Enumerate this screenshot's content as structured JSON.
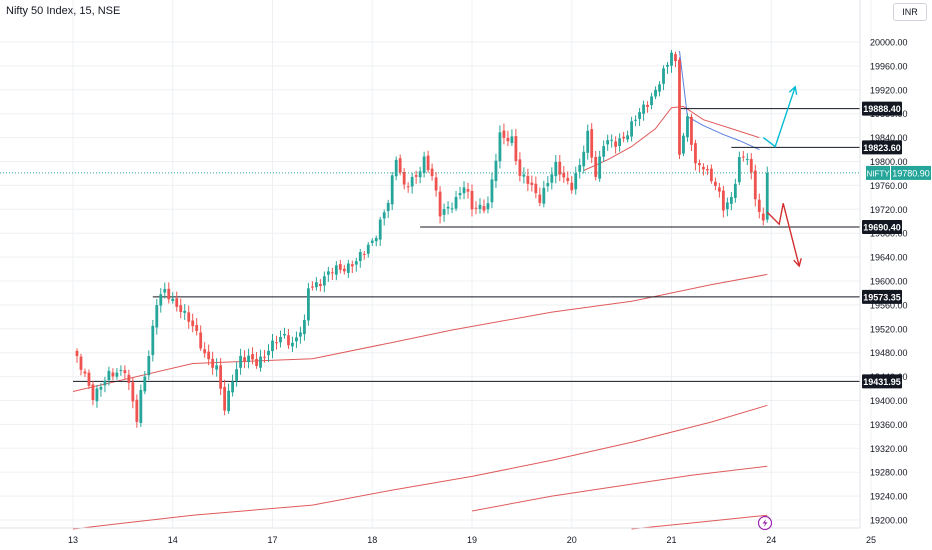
{
  "header": {
    "title": "Nifty 50 Index, 15, NSE",
    "currency": "INR"
  },
  "colors": {
    "up": "#26a69a",
    "down": "#ef5350",
    "ma": "#e05a5a",
    "ma_fast": "#5b7fe0",
    "projection_up": "#00bcd4",
    "projection_down": "#d32f2f",
    "level": "#131722",
    "grid": "#eef0f3",
    "last_price": "#26a69a"
  },
  "chart_data": {
    "type": "candlestick",
    "title": "Nifty 50 Index, 15, NSE",
    "ylim": [
      19185,
      20040
    ],
    "y_ticks": [
      19200,
      19240,
      19280,
      19320,
      19360,
      19400,
      19440,
      19480,
      19520,
      19560,
      19600,
      19640,
      19680,
      19720,
      19760,
      19800,
      19840,
      19880,
      19920,
      19960,
      20000
    ],
    "y_tick_labels": [
      "19200.00",
      "19240.00",
      "19280.00",
      "19320.00",
      "19360.00",
      "19400.00",
      "19440.00",
      "19480.00",
      "19520.00",
      "19560.00",
      "19600.00",
      "19640.00",
      "19680.00",
      "19720.00",
      "19760.00",
      "19800.00",
      "19840.00",
      "19880.00",
      "19920.00",
      "19960.00",
      "20000.00"
    ],
    "x_ticks": [
      {
        "label": "13",
        "bar": 0
      },
      {
        "label": "14",
        "bar": 25
      },
      {
        "label": "17",
        "bar": 50
      },
      {
        "label": "18",
        "bar": 75
      },
      {
        "label": "19",
        "bar": 100
      },
      {
        "label": "20",
        "bar": 125
      },
      {
        "label": "21",
        "bar": 150
      },
      {
        "label": "24",
        "bar": 175
      },
      {
        "label": "25",
        "bar": 200
      }
    ],
    "bar0_x_offset": -16,
    "last_bar": 174,
    "close_path": [
      [
        0,
        19480
      ],
      [
        3,
        19440
      ],
      [
        5,
        19410
      ],
      [
        9,
        19440
      ],
      [
        13,
        19455
      ],
      [
        16,
        19365
      ],
      [
        17,
        19410
      ],
      [
        19,
        19480
      ],
      [
        21,
        19565
      ],
      [
        23,
        19580
      ],
      [
        27,
        19555
      ],
      [
        31,
        19510
      ],
      [
        33,
        19480
      ],
      [
        36,
        19450
      ],
      [
        38,
        19385
      ],
      [
        40,
        19440
      ],
      [
        42,
        19470
      ],
      [
        46,
        19465
      ],
      [
        49,
        19485
      ],
      [
        53,
        19510
      ],
      [
        55,
        19495
      ],
      [
        58,
        19525
      ],
      [
        59,
        19590
      ],
      [
        62,
        19600
      ],
      [
        66,
        19620
      ],
      [
        71,
        19630
      ],
      [
        74,
        19660
      ],
      [
        76,
        19680
      ],
      [
        79,
        19730
      ],
      [
        81,
        19810
      ],
      [
        83,
        19760
      ],
      [
        86,
        19770
      ],
      [
        88,
        19805
      ],
      [
        90,
        19780
      ],
      [
        92,
        19710
      ],
      [
        94,
        19720
      ],
      [
        98,
        19760
      ],
      [
        100,
        19720
      ],
      [
        104,
        19730
      ],
      [
        107,
        19840
      ],
      [
        110,
        19840
      ],
      [
        112,
        19775
      ],
      [
        114,
        19765
      ],
      [
        117,
        19740
      ],
      [
        121,
        19790
      ],
      [
        125,
        19760
      ],
      [
        127,
        19790
      ],
      [
        129,
        19845
      ],
      [
        131,
        19780
      ],
      [
        133,
        19830
      ],
      [
        136,
        19830
      ],
      [
        139,
        19850
      ],
      [
        142,
        19880
      ],
      [
        146,
        19920
      ],
      [
        149,
        19960
      ],
      [
        150,
        19985
      ],
      [
        151,
        19965
      ],
      [
        152,
        19820
      ],
      [
        154,
        19870
      ],
      [
        156,
        19790
      ],
      [
        158,
        19795
      ],
      [
        161,
        19760
      ],
      [
        163,
        19720
      ],
      [
        165,
        19740
      ],
      [
        167,
        19805
      ],
      [
        169,
        19805
      ],
      [
        171,
        19740
      ],
      [
        173,
        19700
      ],
      [
        174,
        19780
      ]
    ],
    "overlays": [
      {
        "kind": "ma",
        "color": "ma",
        "points": [
          [
            0,
            19415
          ],
          [
            30,
            19462
          ],
          [
            60,
            19470
          ],
          [
            80,
            19497
          ],
          [
            95,
            19518
          ],
          [
            120,
            19548
          ],
          [
            140,
            19566
          ],
          [
            160,
            19594
          ],
          [
            174,
            19611
          ]
        ]
      },
      {
        "kind": "ma",
        "color": "ma",
        "points": [
          [
            100,
            19215
          ],
          [
            120,
            19240
          ],
          [
            140,
            19260
          ],
          [
            155,
            19275
          ],
          [
            174,
            19290
          ]
        ]
      },
      {
        "kind": "ma",
        "color": "ma",
        "points": [
          [
            0,
            19185
          ],
          [
            30,
            19208
          ],
          [
            60,
            19225
          ],
          [
            80,
            19250
          ],
          [
            100,
            19273
          ],
          [
            120,
            19300
          ],
          [
            140,
            19330
          ],
          [
            160,
            19364
          ],
          [
            174,
            19392
          ]
        ]
      },
      {
        "kind": "ma",
        "color": "ma",
        "points": [
          [
            140,
            19185
          ],
          [
            155,
            19195
          ],
          [
            174,
            19208
          ]
        ]
      },
      {
        "kind": "ma",
        "color": "ma",
        "points": [
          [
            128,
            19785
          ],
          [
            134,
            19803
          ],
          [
            140,
            19825
          ],
          [
            146,
            19855
          ],
          [
            150,
            19890
          ],
          [
            153,
            19892
          ],
          [
            158,
            19870
          ],
          [
            165,
            19855
          ],
          [
            172,
            19840
          ]
        ]
      },
      {
        "kind": "ma",
        "color": "ma_fast",
        "points": [
          [
            152,
            19985
          ],
          [
            154,
            19875
          ],
          [
            158,
            19860
          ],
          [
            163,
            19845
          ],
          [
            167,
            19835
          ],
          [
            172,
            19820
          ]
        ]
      }
    ],
    "levels": [
      {
        "value": 19888.4,
        "label": "19888.40",
        "from_bar": 152
      },
      {
        "value": 19823.6,
        "label": "19823.60",
        "from_bar": 165
      },
      {
        "value": 19690.4,
        "label": "19690.40",
        "from_bar": 87
      },
      {
        "value": 19573.35,
        "label": "19573.35",
        "from_bar": 20
      },
      {
        "value": 19431.95,
        "label": "19431.95",
        "from_bar": 0
      }
    ],
    "projections": [
      {
        "color": "projection_up",
        "points": [
          [
            173,
            19840
          ],
          [
            176,
            19825
          ],
          [
            181,
            19925
          ]
        ]
      },
      {
        "color": "projection_down",
        "points": [
          [
            174,
            19715
          ],
          [
            177,
            19695
          ],
          [
            178,
            19730
          ],
          [
            182,
            19625
          ]
        ]
      }
    ],
    "last_price": {
      "label_name": "NIFTY",
      "value": 19780.9,
      "label": "19780.90"
    }
  }
}
